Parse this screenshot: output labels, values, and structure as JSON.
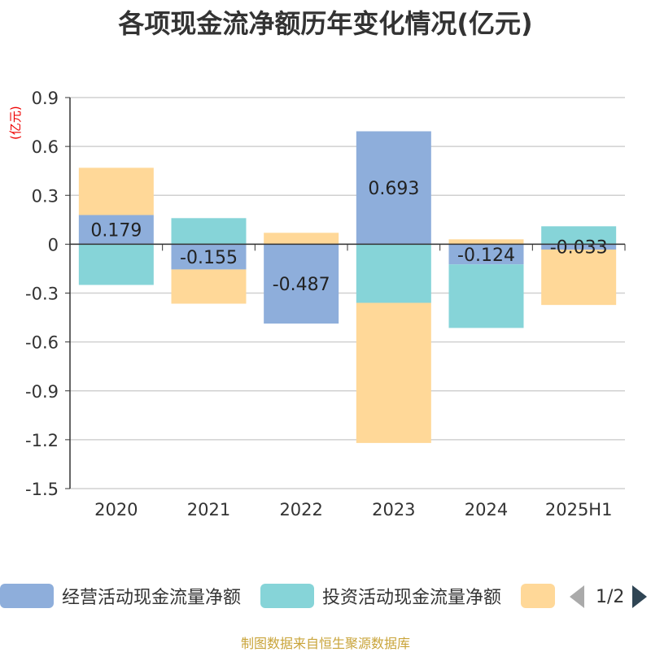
{
  "title": "各项现金流净额历年变化情况(亿元)",
  "unit_label": "(亿元)",
  "source": "制图数据来自恒生聚源数据库",
  "legend": {
    "items": [
      {
        "label": "经营活动现金流量净额",
        "color": "#8eaedb"
      },
      {
        "label": "投资活动现金流量净额",
        "color": "#86d4d8"
      },
      {
        "label": "",
        "color": "#ffd898"
      }
    ],
    "page": "1/2"
  },
  "chart_data": {
    "type": "bar",
    "stacked": true,
    "categories": [
      "2020",
      "2021",
      "2022",
      "2023",
      "2024",
      "2025H1"
    ],
    "ylim": [
      -1.5,
      0.9
    ],
    "yticks": [
      "0.9",
      "0.6",
      "0.3",
      "0",
      "-0.3",
      "-0.6",
      "-0.9",
      "-1.2",
      "-1.5"
    ],
    "grid": true,
    "series": [
      {
        "name": "经营活动现金流量净额",
        "color": "#8eaedb",
        "values": [
          0.179,
          -0.155,
          -0.487,
          0.693,
          -0.124,
          -0.033
        ],
        "labels": [
          "0.179",
          "-0.155",
          "-0.487",
          "0.693",
          "-0.124",
          "-0.033"
        ]
      },
      {
        "name": "投资活动现金流量净额",
        "color": "#86d4d8",
        "values": [
          -0.25,
          0.16,
          0.0,
          -0.36,
          -0.39,
          0.11
        ]
      },
      {
        "name": "",
        "color": "#ffd898",
        "values": [
          0.29,
          -0.21,
          0.07,
          -0.86,
          0.03,
          -0.34
        ]
      }
    ]
  }
}
